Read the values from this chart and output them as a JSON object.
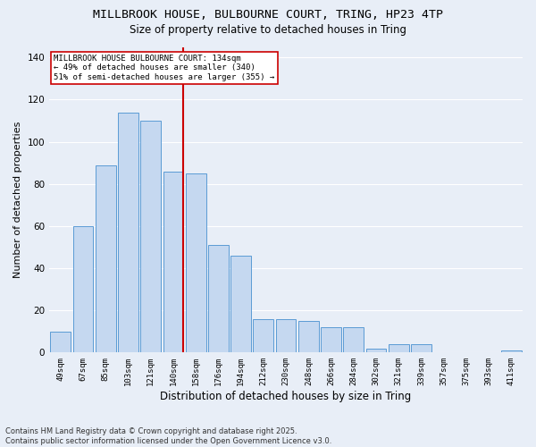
{
  "title1": "MILLBROOK HOUSE, BULBOURNE COURT, TRING, HP23 4TP",
  "title2": "Size of property relative to detached houses in Tring",
  "xlabel": "Distribution of detached houses by size in Tring",
  "ylabel": "Number of detached properties",
  "categories": [
    "49sqm",
    "67sqm",
    "85sqm",
    "103sqm",
    "121sqm",
    "140sqm",
    "158sqm",
    "176sqm",
    "194sqm",
    "212sqm",
    "230sqm",
    "248sqm",
    "266sqm",
    "284sqm",
    "302sqm",
    "321sqm",
    "339sqm",
    "357sqm",
    "375sqm",
    "393sqm",
    "411sqm"
  ],
  "values": [
    10,
    60,
    89,
    114,
    110,
    86,
    85,
    51,
    46,
    16,
    16,
    15,
    12,
    12,
    2,
    4,
    4,
    0,
    0,
    0,
    1
  ],
  "bar_color": "#c5d8f0",
  "bar_edge_color": "#5b9bd5",
  "red_line_index": 5,
  "red_line_color": "#cc0000",
  "annotation_line1": "MILLBROOK HOUSE BULBOURNE COURT: 134sqm",
  "annotation_line2": "← 49% of detached houses are smaller (340)",
  "annotation_line3": "51% of semi-detached houses are larger (355) →",
  "annotation_box_color": "#ffffff",
  "annotation_box_edge": "#cc0000",
  "ylim": [
    0,
    145
  ],
  "yticks": [
    0,
    20,
    40,
    60,
    80,
    100,
    120,
    140
  ],
  "background_color": "#e8eef7",
  "grid_color": "#ffffff",
  "footer1": "Contains HM Land Registry data © Crown copyright and database right 2025.",
  "footer2": "Contains public sector information licensed under the Open Government Licence v3.0.",
  "title_fontsize": 9.5,
  "subtitle_fontsize": 8.5,
  "tick_fontsize": 6.5,
  "ylabel_fontsize": 8,
  "xlabel_fontsize": 8.5,
  "footer_fontsize": 6
}
